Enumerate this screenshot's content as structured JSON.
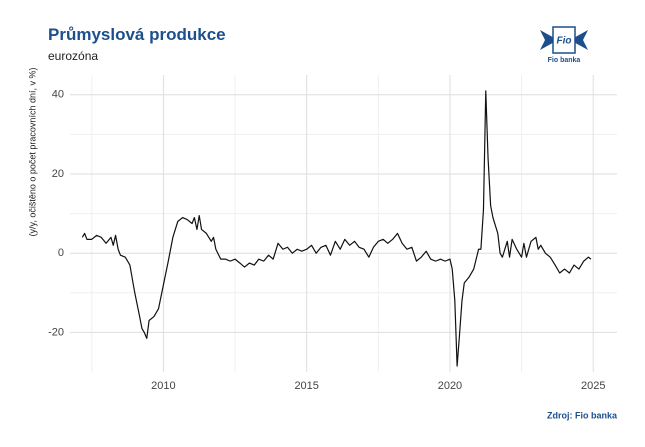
{
  "chart_data": {
    "type": "line",
    "title": "Průmyslová produkce",
    "subtitle": "eurozóna",
    "y_label": "(y/y, očištěno o počet pracovních dní, v %)",
    "source": "Zdroj: Fio banka",
    "logo_mark": "Fio",
    "logo_name": "Fio banka",
    "xlim": [
      2006.74,
      2025.83
    ],
    "ylim": [
      -30,
      45
    ],
    "xticks": [
      2010,
      2015,
      2020,
      2025
    ],
    "yticks": [
      -20,
      0,
      20,
      40
    ],
    "xticks_minor": [
      2007.5,
      2012.5,
      2017.5,
      2022.5
    ],
    "yticks_minor": [
      -10,
      10,
      30
    ],
    "grid": true,
    "series": [
      {
        "color": "#111111",
        "x": [
          2007.17,
          2007.25,
          2007.33,
          2007.5,
          2007.67,
          2007.83,
          2008.0,
          2008.17,
          2008.25,
          2008.33,
          2008.42,
          2008.5,
          2008.67,
          2008.83,
          2009.0,
          2009.17,
          2009.25,
          2009.33,
          2009.42,
          2009.5,
          2009.67,
          2009.83,
          2010.0,
          2010.17,
          2010.33,
          2010.5,
          2010.67,
          2010.83,
          2011.0,
          2011.08,
          2011.17,
          2011.25,
          2011.33,
          2011.5,
          2011.67,
          2011.75,
          2011.83,
          2012.0,
          2012.17,
          2012.33,
          2012.5,
          2012.67,
          2012.83,
          2013.0,
          2013.17,
          2013.33,
          2013.5,
          2013.67,
          2013.83,
          2014.0,
          2014.17,
          2014.33,
          2014.5,
          2014.67,
          2014.83,
          2015.0,
          2015.17,
          2015.33,
          2015.5,
          2015.67,
          2015.83,
          2016.0,
          2016.17,
          2016.33,
          2016.5,
          2016.67,
          2016.83,
          2017.0,
          2017.17,
          2017.33,
          2017.5,
          2017.67,
          2017.83,
          2018.0,
          2018.17,
          2018.33,
          2018.5,
          2018.67,
          2018.83,
          2019.0,
          2019.17,
          2019.33,
          2019.5,
          2019.67,
          2019.83,
          2020.0,
          2020.08,
          2020.17,
          2020.25,
          2020.33,
          2020.42,
          2020.5,
          2020.67,
          2020.83,
          2021.0,
          2021.08,
          2021.17,
          2021.25,
          2021.33,
          2021.42,
          2021.5,
          2021.67,
          2021.75,
          2021.83,
          2022.0,
          2022.08,
          2022.17,
          2022.33,
          2022.5,
          2022.58,
          2022.67,
          2022.83,
          2023.0,
          2023.08,
          2023.17,
          2023.33,
          2023.5,
          2023.67,
          2023.83,
          2024.0,
          2024.17,
          2024.33,
          2024.5,
          2024.67,
          2024.83,
          2024.92
        ],
        "values": [
          4,
          5,
          3.5,
          3.5,
          4.5,
          4,
          2.5,
          4,
          2,
          4.5,
          1,
          -0.5,
          -1,
          -3,
          -10,
          -16,
          -19,
          -20,
          -21.5,
          -17,
          -16,
          -14,
          -8,
          -2,
          4,
          8,
          9,
          8.5,
          7.5,
          9,
          6,
          9.5,
          6,
          5,
          3,
          4,
          1,
          -1.5,
          -1.5,
          -2,
          -1.5,
          -2.5,
          -3.5,
          -2.5,
          -3,
          -1.5,
          -2,
          -0.5,
          -1.5,
          2.5,
          1,
          1.5,
          0,
          1,
          0.5,
          1,
          2,
          0,
          1.5,
          2,
          -0.5,
          3,
          1,
          3.5,
          2,
          3,
          1.5,
          1,
          -1,
          1.5,
          3,
          3.5,
          2.5,
          3.5,
          5,
          2.5,
          1,
          1.5,
          -2,
          -1,
          0.5,
          -1.5,
          -2,
          -1.5,
          -2,
          -1.5,
          -4,
          -12,
          -28.5,
          -21,
          -12,
          -7.5,
          -6,
          -4,
          1,
          1,
          11,
          41,
          24,
          12,
          9,
          5,
          0,
          -1,
          3,
          -1,
          3.5,
          1,
          -1,
          2.5,
          -1,
          3,
          4,
          1,
          2,
          0,
          -1,
          -3,
          -5,
          -4,
          -5,
          -3,
          -4,
          -2,
          -1,
          -1.5
        ]
      }
    ]
  }
}
